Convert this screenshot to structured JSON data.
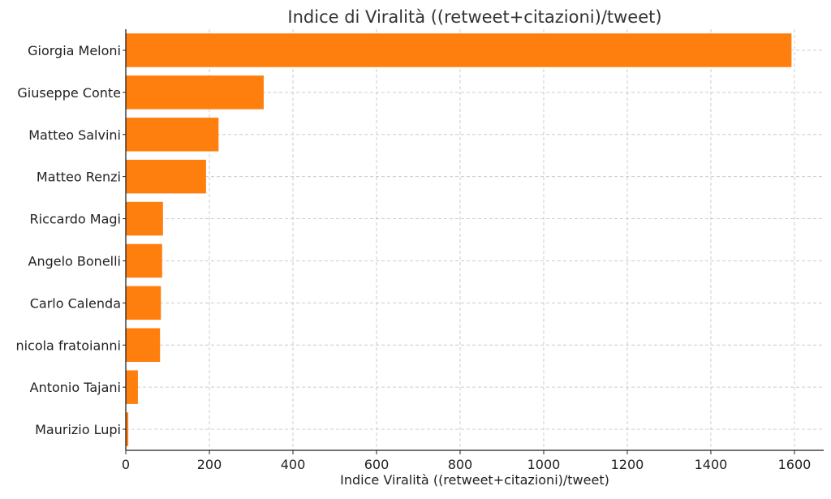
{
  "chart_data": {
    "type": "bar",
    "orientation": "horizontal",
    "title": "Indice di Viralità ((retweet+citazioni)/tweet)",
    "xlabel": "Indice Viralità ((retweet+citazioni)/tweet)",
    "ylabel": "",
    "categories": [
      "Giorgia Meloni",
      "Giuseppe Conte",
      "Matteo Salvini",
      "Matteo Renzi",
      "Riccardo Magi",
      "Angelo Bonelli",
      "Carlo Calenda",
      "nicola fratoianni",
      "Antonio Tajani",
      "Maurizio Lupi"
    ],
    "values": [
      1593,
      330,
      222,
      192,
      89,
      87,
      84,
      82,
      29,
      6
    ],
    "xlim": [
      0,
      1670
    ],
    "xticks": [
      0,
      200,
      400,
      600,
      800,
      1000,
      1200,
      1400,
      1600
    ],
    "grid": true,
    "bar_color": "#ff7f0e",
    "grid_color": "#cccccc"
  }
}
